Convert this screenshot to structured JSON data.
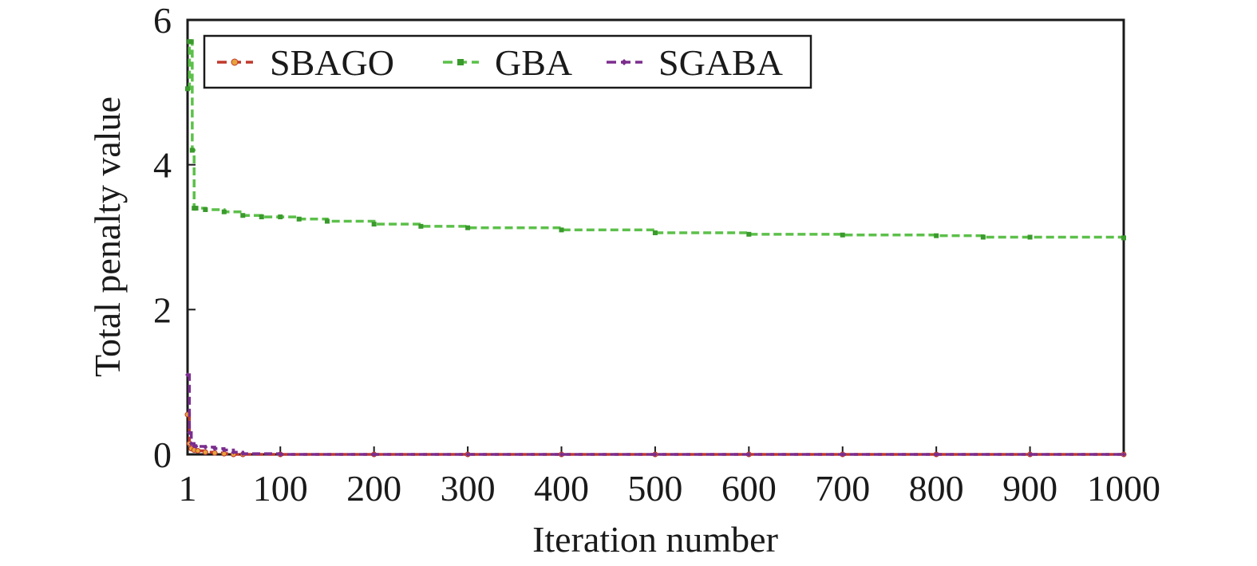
{
  "chart_data": {
    "type": "line",
    "title": "",
    "xlabel": "Iteration number",
    "ylabel": "Total penalty value",
    "xlim": [
      1,
      1000
    ],
    "ylim": [
      0,
      6
    ],
    "x_ticks": [
      1,
      100,
      200,
      300,
      400,
      500,
      600,
      700,
      800,
      900,
      1000
    ],
    "y_ticks": [
      0,
      2,
      4,
      6
    ],
    "grid": false,
    "legend_position": "top-left",
    "series": [
      {
        "name": "SBAGO",
        "color": "#c0392b",
        "marker_color": "#e8a33d",
        "marker": "circle",
        "style": "dashed",
        "x": [
          1,
          3,
          5,
          8,
          12,
          20,
          30,
          40,
          50,
          60,
          100,
          200,
          300,
          400,
          500,
          600,
          700,
          800,
          900,
          1000
        ],
        "y": [
          0.55,
          0.15,
          0.08,
          0.06,
          0.05,
          0.03,
          0.02,
          0.01,
          0.0,
          0.0,
          0.0,
          0.0,
          0.0,
          0.0,
          0.0,
          0.0,
          0.0,
          0.0,
          0.0,
          0.0
        ]
      },
      {
        "name": "GBA",
        "color": "#5cc04a",
        "marker_color": "#3a9a2c",
        "marker": "square",
        "style": "dashed",
        "x": [
          1,
          3,
          5,
          6,
          8,
          10,
          20,
          40,
          60,
          80,
          100,
          120,
          150,
          200,
          250,
          300,
          400,
          500,
          600,
          700,
          800,
          850,
          900,
          1000
        ],
        "y": [
          5.05,
          5.7,
          5.7,
          4.2,
          3.4,
          3.4,
          3.38,
          3.35,
          3.3,
          3.28,
          3.28,
          3.25,
          3.22,
          3.18,
          3.15,
          3.13,
          3.1,
          3.06,
          3.04,
          3.03,
          3.02,
          3.0,
          3.0,
          2.99
        ]
      },
      {
        "name": "SGABA",
        "color": "#7b2d8e",
        "marker_color": "#7b2d8e",
        "marker": "diamond",
        "style": "dashed",
        "x": [
          1,
          3,
          5,
          8,
          10,
          20,
          30,
          40,
          50,
          60,
          100,
          200,
          300,
          400,
          500,
          600,
          700,
          800,
          900,
          1000
        ],
        "y": [
          1.1,
          0.3,
          0.15,
          0.12,
          0.11,
          0.1,
          0.08,
          0.06,
          0.03,
          0.01,
          0.0,
          0.0,
          0.0,
          0.0,
          0.0,
          0.0,
          0.0,
          0.0,
          0.0,
          0.0
        ]
      }
    ]
  }
}
